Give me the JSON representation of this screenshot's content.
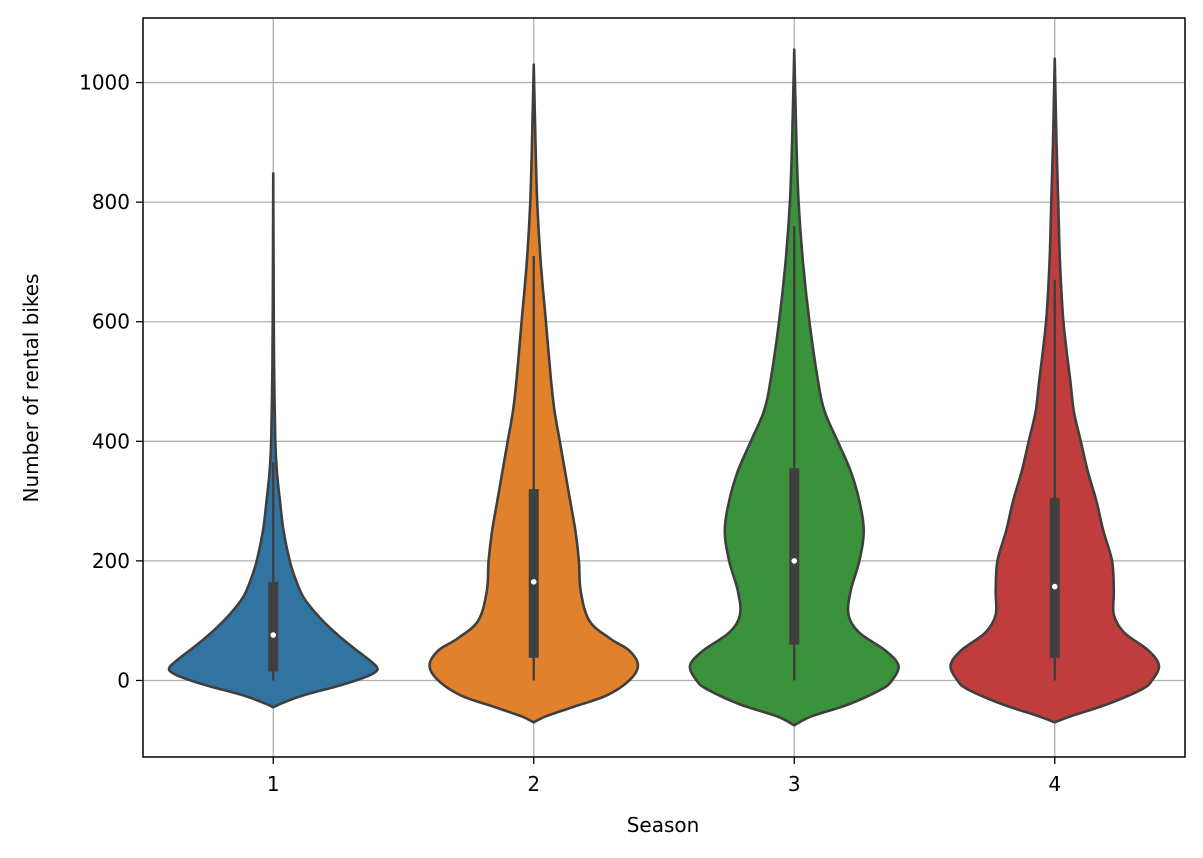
{
  "chart_data": {
    "type": "violin",
    "title": "",
    "xlabel": "Season",
    "ylabel": "Number of rental bikes",
    "categories": [
      "1",
      "2",
      "3",
      "4"
    ],
    "yticks": [
      0,
      200,
      400,
      600,
      800,
      1000
    ],
    "ylim": [
      -128,
      1108
    ],
    "grid": true,
    "series": [
      {
        "category": "1",
        "color": "#3274a1",
        "median": 76,
        "q1": 15,
        "q3": 165,
        "whisker_low": 0,
        "whisker_high": 365,
        "min": -45,
        "max": 848,
        "density": [
          [
            -45,
            0
          ],
          [
            -38,
            17
          ],
          [
            -25,
            58
          ],
          [
            -10,
            122
          ],
          [
            0,
            160
          ],
          [
            10,
            190
          ],
          [
            20,
            202
          ],
          [
            35,
            185
          ],
          [
            55,
            155
          ],
          [
            80,
            120
          ],
          [
            110,
            85
          ],
          [
            140,
            58
          ],
          [
            170,
            43
          ],
          [
            200,
            32
          ],
          [
            250,
            20
          ],
          [
            300,
            13
          ],
          [
            350,
            7
          ],
          [
            400,
            4
          ],
          [
            500,
            2
          ],
          [
            600,
            1
          ],
          [
            848,
            0
          ]
        ]
      },
      {
        "category": "2",
        "color": "#e1812c",
        "median": 165,
        "q1": 38,
        "q3": 320,
        "whisker_low": 0,
        "whisker_high": 710,
        "min": -70,
        "max": 1030,
        "density": [
          [
            -70,
            0
          ],
          [
            -60,
            7
          ],
          [
            -45,
            22
          ],
          [
            -25,
            42
          ],
          [
            0,
            55
          ],
          [
            25,
            60
          ],
          [
            50,
            55
          ],
          [
            70,
            44
          ],
          [
            100,
            32
          ],
          [
            150,
            27
          ],
          [
            200,
            26
          ],
          [
            250,
            24
          ],
          [
            300,
            21
          ],
          [
            350,
            18
          ],
          [
            400,
            15
          ],
          [
            450,
            12
          ],
          [
            500,
            10
          ],
          [
            600,
            7
          ],
          [
            700,
            4
          ],
          [
            800,
            2
          ],
          [
            900,
            1
          ],
          [
            1030,
            0
          ]
        ]
      },
      {
        "category": "3",
        "color": "#3a923a",
        "median": 200,
        "q1": 60,
        "q3": 355,
        "whisker_low": 0,
        "whisker_high": 760,
        "min": -75,
        "max": 1055,
        "density": [
          [
            -75,
            0
          ],
          [
            -60,
            8
          ],
          [
            -40,
            25
          ],
          [
            -15,
            40
          ],
          [
            0,
            45
          ],
          [
            25,
            48
          ],
          [
            50,
            42
          ],
          [
            80,
            30
          ],
          [
            110,
            25
          ],
          [
            150,
            26
          ],
          [
            200,
            30
          ],
          [
            250,
            32
          ],
          [
            300,
            30
          ],
          [
            350,
            26
          ],
          [
            400,
            20
          ],
          [
            450,
            14
          ],
          [
            500,
            11
          ],
          [
            600,
            7
          ],
          [
            700,
            4
          ],
          [
            800,
            2
          ],
          [
            900,
            1
          ],
          [
            1055,
            0
          ]
        ]
      },
      {
        "category": "4",
        "color": "#c03d3e",
        "median": 157,
        "q1": 38,
        "q3": 305,
        "whisker_low": 0,
        "whisker_high": 670,
        "min": -70,
        "max": 1040,
        "density": [
          [
            -70,
            0
          ],
          [
            -60,
            9
          ],
          [
            -40,
            30
          ],
          [
            -15,
            50
          ],
          [
            0,
            56
          ],
          [
            25,
            60
          ],
          [
            50,
            54
          ],
          [
            80,
            40
          ],
          [
            110,
            34
          ],
          [
            150,
            34
          ],
          [
            200,
            33
          ],
          [
            250,
            28
          ],
          [
            300,
            24
          ],
          [
            350,
            19
          ],
          [
            400,
            15
          ],
          [
            450,
            11
          ],
          [
            500,
            9
          ],
          [
            600,
            5
          ],
          [
            700,
            3
          ],
          [
            800,
            2
          ],
          [
            900,
            1
          ],
          [
            1040,
            0
          ]
        ]
      }
    ]
  }
}
